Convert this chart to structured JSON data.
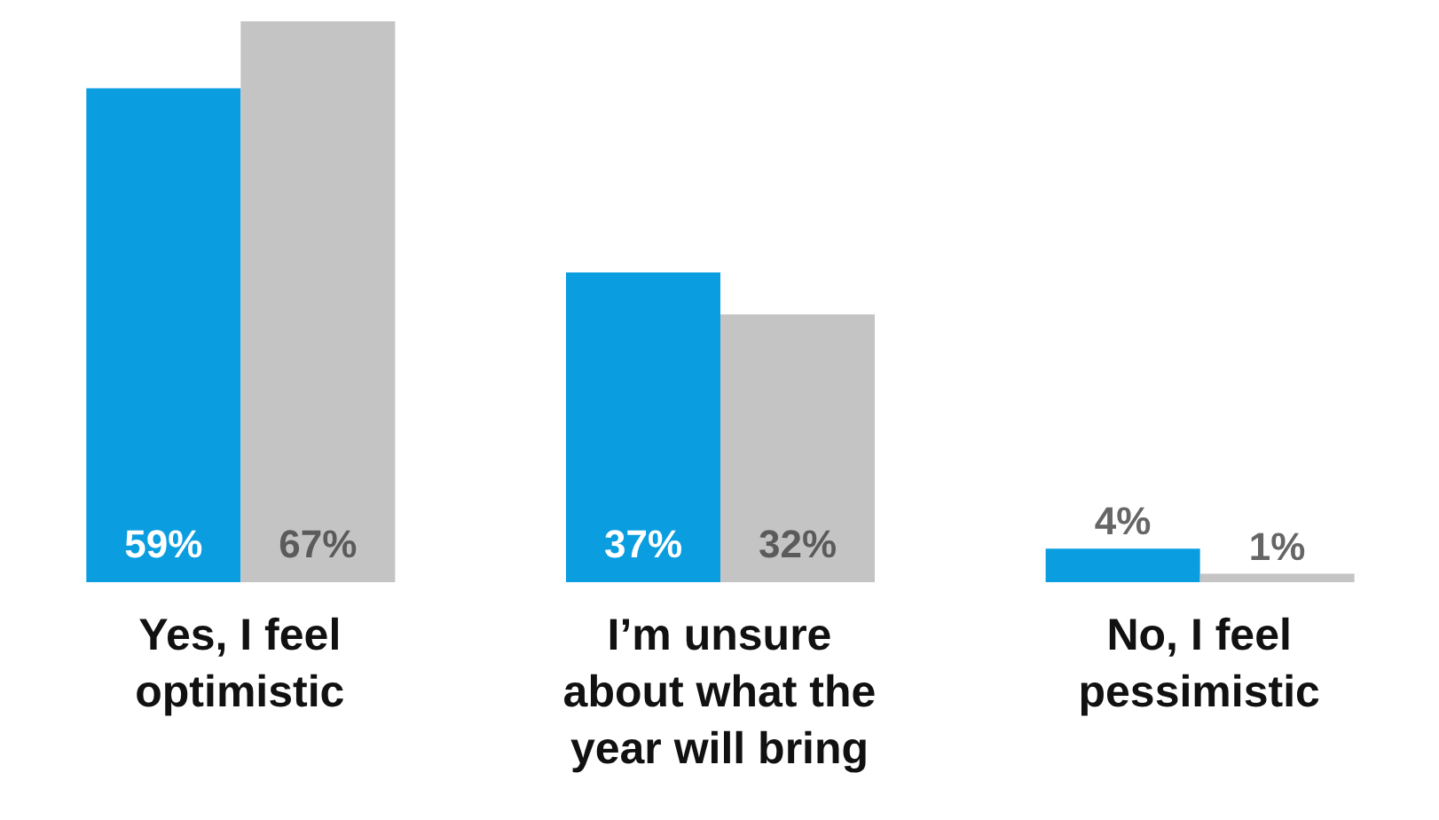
{
  "chart_data": {
    "type": "bar",
    "categories": [
      "Yes, I feel optimistic",
      "I’m unsure about what the year will bring",
      "No, I feel pessimistic"
    ],
    "series": [
      {
        "color": "#0a9de0",
        "values": [
          59,
          37,
          4
        ],
        "value_labels": [
          "59%",
          "37%",
          "4%"
        ]
      },
      {
        "color": "#c4c4c4",
        "values": [
          67,
          32,
          1
        ],
        "value_labels": [
          "67%",
          "32%",
          "1%"
        ]
      }
    ],
    "legend": false,
    "grid": false
  }
}
